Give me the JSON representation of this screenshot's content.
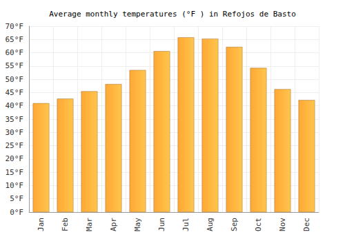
{
  "chart_data": {
    "type": "bar",
    "title": "Average monthly temperatures (°F ) in Refojos de Basto",
    "categories": [
      "Jan",
      "Feb",
      "Mar",
      "Apr",
      "May",
      "Jun",
      "Jul",
      "Aug",
      "Sep",
      "Oct",
      "Nov",
      "Dec"
    ],
    "values": [
      41.0,
      42.7,
      45.5,
      48.2,
      53.5,
      60.6,
      65.8,
      65.3,
      62.2,
      54.3,
      46.3,
      42.2
    ],
    "color": "#ffa834",
    "ylim": [
      0,
      70
    ],
    "yticks": [
      {
        "value": 0,
        "label": "0°F"
      },
      {
        "value": 5,
        "label": "5°F"
      },
      {
        "value": 10,
        "label": "10°F"
      },
      {
        "value": 15,
        "label": "15°F"
      },
      {
        "value": 20,
        "label": "20°F"
      },
      {
        "value": 25,
        "label": "25°F"
      },
      {
        "value": 30,
        "label": "30°F"
      },
      {
        "value": 35,
        "label": "35°F"
      },
      {
        "value": 40,
        "label": "40°F"
      },
      {
        "value": 45,
        "label": "45°F"
      },
      {
        "value": 50,
        "label": "50°F"
      },
      {
        "value": 55,
        "label": "55°F"
      },
      {
        "value": 60,
        "label": "60°F"
      },
      {
        "value": 65,
        "label": "65°F"
      },
      {
        "value": 70,
        "label": "70°F"
      }
    ],
    "grid": true
  }
}
